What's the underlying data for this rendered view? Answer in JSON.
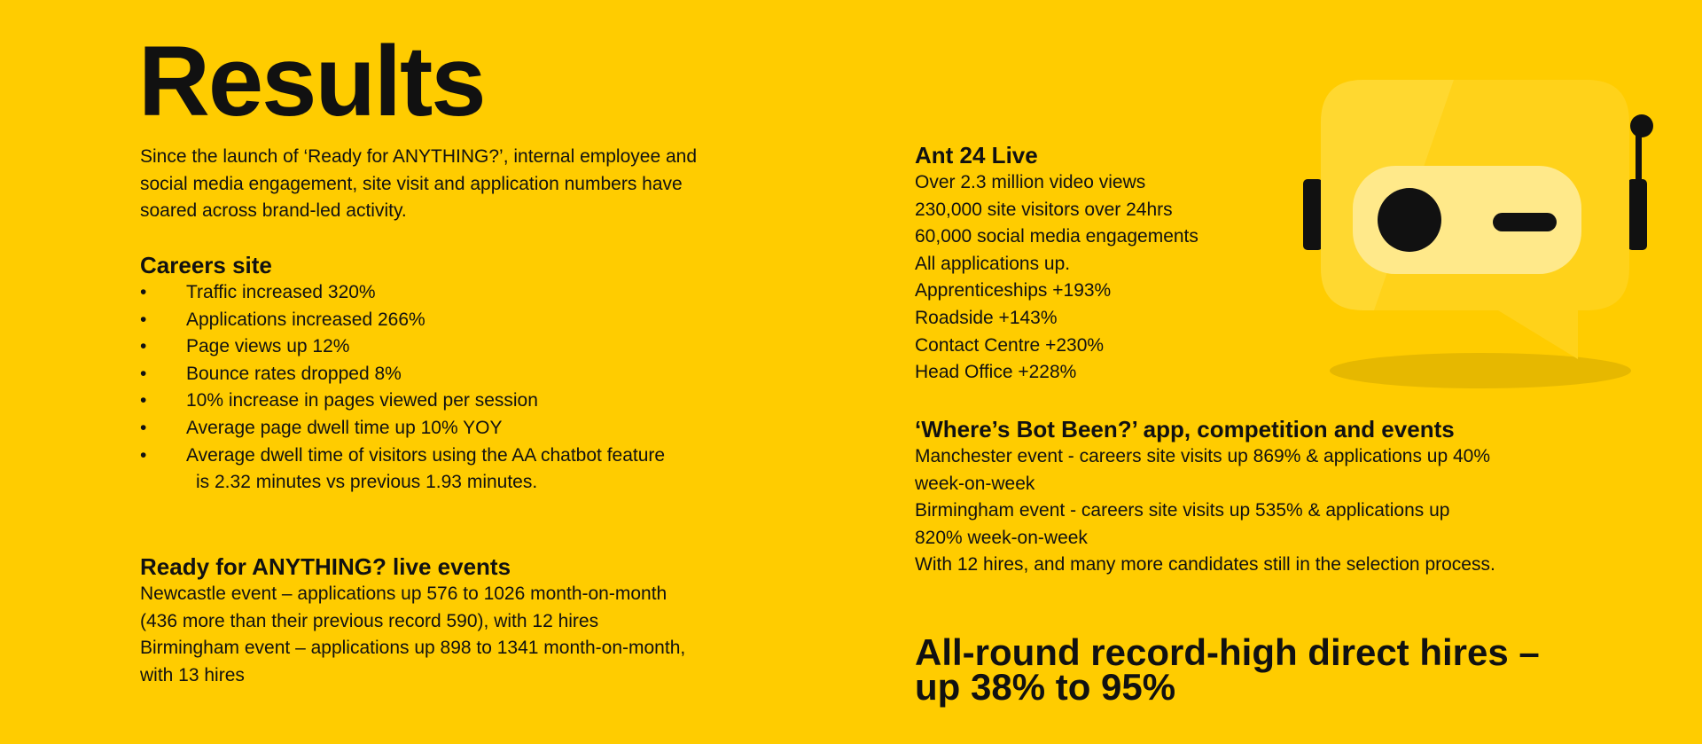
{
  "title": "Results",
  "intro": [
    "Since the launch of ‘Ready for ANYTHING?’, internal employee and",
    "social media engagement, site visit and application numbers have",
    "soared across brand-led activity."
  ],
  "careers": {
    "heading": "Careers site",
    "bullet_glyph": "•",
    "items": [
      "Traffic increased 320%",
      "Applications increased 266%",
      "Page views up 12%",
      "Bounce rates dropped 8%",
      "10% increase in pages viewed per session",
      "Average page dwell time up 10% YOY",
      "Average dwell time of visitors using the AA chatbot feature"
    ],
    "continuation": "is 2.32 minutes vs previous 1.93 minutes."
  },
  "live_events": {
    "heading": "Ready for ANYTHING? live events",
    "lines": [
      "Newcastle event – applications up 576 to 1026 month-on-month",
      "(436 more than their previous record 590), with 12 hires",
      "Birmingham event – applications up 898 to 1341 month-on-month,",
      "with 13 hires"
    ]
  },
  "ant24": {
    "heading": "Ant 24 Live",
    "lines": [
      "Over 2.3 million video views",
      "230,000 site visitors over 24hrs",
      "60,000 social media engagements",
      "All applications up.",
      "Apprenticeships +193%",
      "Roadside +143%",
      "Contact Centre +230%",
      "Head Office +228%"
    ]
  },
  "bot": {
    "heading": "‘Where’s Bot Been?’ app, competition and events",
    "lines": [
      "Manchester event - careers site visits up 869% & applications up 40%",
      "week-on-week",
      "Birmingham event - careers site visits up 535% & applications up",
      "820% week-on-week",
      "With 12 hires, and many more candidates still in the selection process."
    ]
  },
  "summary": [
    "All-round record-high direct hires –",
    "up 38% to 95%"
  ],
  "colors": {
    "background": "#FFCC00",
    "text": "#111111",
    "bot_face": "#FFE98A"
  },
  "icons": {
    "mascot": "chatbot-robot-icon"
  }
}
